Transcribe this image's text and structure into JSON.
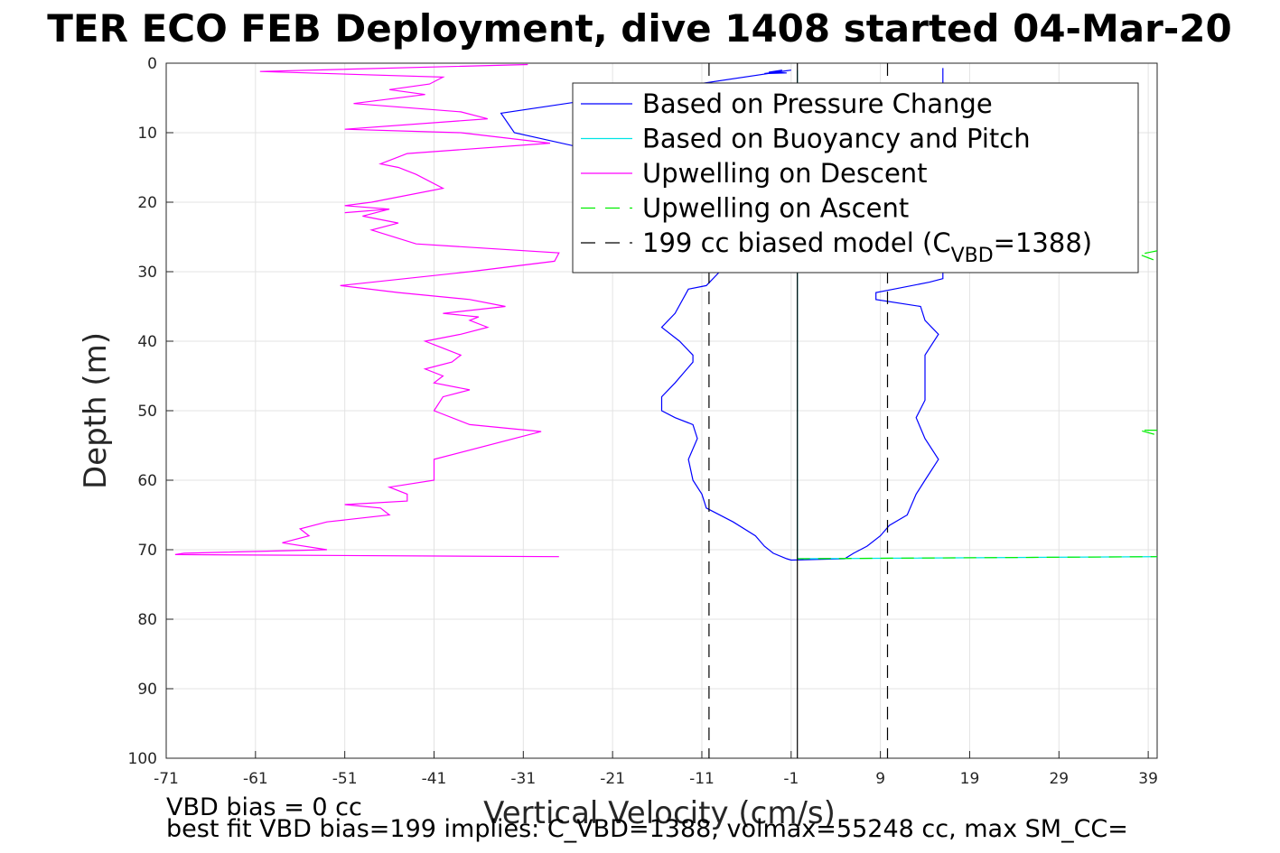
{
  "chart_data": {
    "type": "line",
    "title": "TER ECO FEB Deployment, dive 1408 started 04-Mar-20",
    "xlabel": "Vertical Velocity (cm/s)",
    "ylabel": "Depth (m)",
    "xlim": [
      -71,
      40
    ],
    "ylim": [
      0,
      100
    ],
    "y_reversed": true,
    "grid": true,
    "xticks": [
      "-71",
      "-61",
      "-51",
      "-41",
      "-31",
      "-21",
      "-11",
      "-1",
      "9",
      "19",
      "29",
      "39"
    ],
    "yticks": [
      "0",
      "10",
      "20",
      "30",
      "40",
      "50",
      "60",
      "70",
      "80",
      "90",
      "100"
    ],
    "legend": {
      "position": "top-right",
      "entries": [
        {
          "label": "Based on Pressure Change",
          "color": "#0000ff",
          "style": "solid"
        },
        {
          "label": "Based on Buoyancy and Pitch",
          "color": "#00e5e5",
          "style": "solid"
        },
        {
          "label": "Upwelling on Descent",
          "color": "#ff00ff",
          "style": "solid"
        },
        {
          "label": "Upwelling on Ascent",
          "color": "#00ee00",
          "style": "dashed"
        },
        {
          "label": "199 cc biased model (C",
          "sub": "VBD",
          "suffix": "=1388)",
          "color": "#000000",
          "style": "dashed"
        }
      ]
    },
    "series": [
      {
        "name": "Based on Pressure Change",
        "color": "#0000ff",
        "points": [
          [
            -2,
            1
          ],
          [
            -3.5,
            1.3
          ],
          [
            -1.5,
            1.4
          ],
          [
            -4,
            1.5
          ],
          [
            -1,
            1
          ],
          [
            -33.5,
            7.2
          ],
          [
            -32,
            10
          ],
          [
            -25,
            12
          ],
          [
            -20.5,
            13
          ],
          [
            -9,
            30
          ],
          [
            -10.5,
            32
          ],
          [
            -12.5,
            32.5
          ],
          [
            -14,
            36
          ],
          [
            -15.5,
            38
          ],
          [
            -13.5,
            40
          ],
          [
            -12,
            42
          ],
          [
            -12,
            43
          ],
          [
            -14,
            46
          ],
          [
            -15.5,
            48
          ],
          [
            -15.5,
            50
          ],
          [
            -14,
            51
          ],
          [
            -12,
            52
          ],
          [
            -11.5,
            54
          ],
          [
            -12.5,
            57
          ],
          [
            -12,
            60
          ],
          [
            -11,
            62
          ],
          [
            -10.5,
            64
          ],
          [
            -7.5,
            66
          ],
          [
            -5,
            68
          ],
          [
            -4,
            69.5
          ],
          [
            -3,
            70.5
          ],
          [
            -1.5,
            71.3
          ],
          [
            -1,
            71.5
          ],
          [
            5,
            71.3
          ],
          [
            6,
            70.5
          ],
          [
            7.5,
            69.5
          ],
          [
            9,
            68
          ],
          [
            10,
            66.5
          ],
          [
            12,
            65
          ],
          [
            13,
            62
          ],
          [
            14,
            60
          ],
          [
            15.5,
            57
          ],
          [
            14,
            54
          ],
          [
            13,
            51
          ],
          [
            14,
            48.5
          ],
          [
            14,
            46
          ],
          [
            14,
            42
          ],
          [
            15.5,
            39
          ],
          [
            14,
            37
          ],
          [
            13.5,
            35
          ],
          [
            8.5,
            34
          ],
          [
            8.5,
            33
          ],
          [
            10.5,
            32.5
          ],
          [
            14.5,
            31.5
          ],
          [
            16,
            31
          ],
          [
            16,
            0.7
          ]
        ]
      },
      {
        "name": "Based on Buoyancy and Pitch",
        "color": "#00e5e5",
        "points": [
          [
            -0.3,
            1
          ],
          [
            -0.3,
            71.3
          ],
          [
            40,
            71
          ]
        ]
      },
      {
        "name": "Upwelling on Descent",
        "color": "#ff00ff",
        "points": [
          [
            -30.5,
            0.2
          ],
          [
            -60.5,
            1.2
          ],
          [
            -40,
            2
          ],
          [
            -41.5,
            3
          ],
          [
            -46,
            3.8
          ],
          [
            -42,
            4.5
          ],
          [
            -50,
            5.8
          ],
          [
            -38,
            7
          ],
          [
            -35,
            8
          ],
          [
            -51,
            9.5
          ],
          [
            -38,
            10
          ],
          [
            -28,
            11.5
          ],
          [
            -44,
            13
          ],
          [
            -47,
            14.5
          ],
          [
            -45,
            15
          ],
          [
            -43,
            16
          ],
          [
            -40,
            18
          ],
          [
            -48,
            20
          ],
          [
            -51,
            20.5
          ],
          [
            -46,
            21
          ],
          [
            -51,
            21.5
          ],
          [
            -46,
            21
          ],
          [
            -49,
            22
          ],
          [
            -45,
            23
          ],
          [
            -48,
            24
          ],
          [
            -43,
            26
          ],
          [
            -27,
            27.3
          ],
          [
            -27.5,
            28.5
          ],
          [
            -37,
            30
          ],
          [
            -51.5,
            32
          ],
          [
            -45,
            33
          ],
          [
            -37,
            34
          ],
          [
            -33,
            35
          ],
          [
            -40,
            36
          ],
          [
            -36,
            36.5
          ],
          [
            -37,
            37
          ],
          [
            -35,
            38
          ],
          [
            -38,
            39
          ],
          [
            -42,
            40
          ],
          [
            -40,
            41
          ],
          [
            -38,
            42
          ],
          [
            -39,
            43
          ],
          [
            -42,
            44
          ],
          [
            -40,
            45
          ],
          [
            -41,
            46
          ],
          [
            -37,
            47
          ],
          [
            -40,
            48
          ],
          [
            -41,
            50
          ],
          [
            -37,
            52
          ],
          [
            -29,
            53
          ],
          [
            -41,
            57
          ],
          [
            -41,
            60
          ],
          [
            -46,
            61
          ],
          [
            -44,
            62
          ],
          [
            -44,
            63
          ],
          [
            -51,
            63.5
          ],
          [
            -47,
            64
          ],
          [
            -46,
            65
          ],
          [
            -53,
            66
          ],
          [
            -56,
            67
          ],
          [
            -55,
            68
          ],
          [
            -58,
            69
          ],
          [
            -53,
            70
          ],
          [
            -69,
            70.5
          ],
          [
            -70,
            70.7
          ],
          [
            -27,
            71
          ]
        ]
      },
      {
        "name": "Upwelling on Ascent",
        "color": "#00ee00",
        "style": "dashed",
        "points": [
          [
            -0.3,
            71.3
          ],
          [
            40,
            71
          ]
        ]
      },
      {
        "name": "Upwelling on Ascent (near 28 m)",
        "color": "#00ee00",
        "style": "dashed",
        "points": [
          [
            40,
            27
          ],
          [
            38,
            27.5
          ],
          [
            40,
            28.5
          ]
        ]
      },
      {
        "name": "Upwelling on Ascent (near 53 m)",
        "color": "#00ee00",
        "style": "dashed",
        "points": [
          [
            40,
            52.8
          ],
          [
            38,
            52.8
          ],
          [
            40,
            53.5
          ]
        ]
      },
      {
        "name": "Zero line",
        "color": "#000000",
        "points": [
          [
            -0.3,
            0
          ],
          [
            -0.3,
            100
          ]
        ]
      },
      {
        "name": "199 cc biased model (CVBD=1388) left",
        "color": "#000000",
        "style": "dashed",
        "points": [
          [
            -10.2,
            0
          ],
          [
            -10.2,
            100
          ]
        ]
      },
      {
        "name": "199 cc biased model (CVBD=1388) right",
        "color": "#000000",
        "style": "dashed",
        "points": [
          [
            9.8,
            0
          ],
          [
            9.8,
            100
          ]
        ]
      }
    ]
  },
  "footer": {
    "line1": "VBD bias = 0 cc",
    "line2": "best fit VBD bias=199 implies: C_VBD=1388, volmax=55248 cc, max SM_CC="
  }
}
